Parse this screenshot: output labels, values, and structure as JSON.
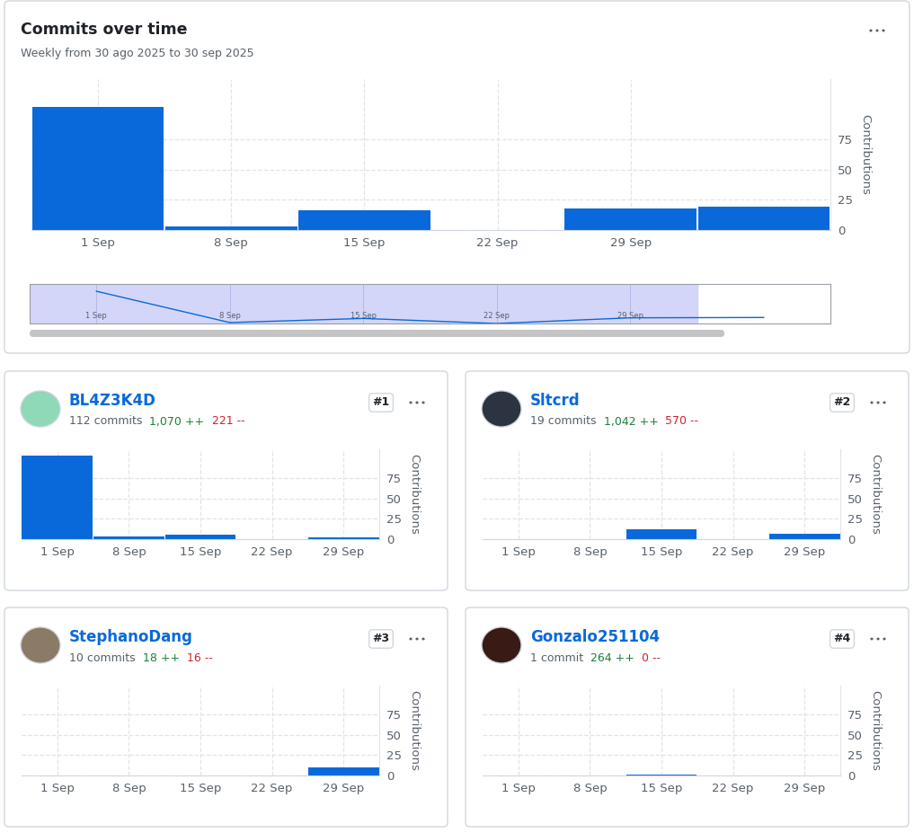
{
  "chart_data": [
    {
      "type": "bar",
      "title": "Commits over time",
      "subtitle": "Weekly from 30 ago 2025 to 30 sep 2025",
      "ylabel": "Contributions",
      "categories": [
        "1 Sep",
        "8 Sep",
        "15 Sep",
        "22 Sep",
        "29 Sep",
        null
      ],
      "values": [
        102,
        3,
        16,
        0,
        18,
        19
      ],
      "color": "#0969da",
      "ylim": [
        0,
        125
      ],
      "yticks": [
        0,
        25,
        50,
        75
      ],
      "grid": true
    },
    {
      "type": "bar",
      "title": "BL4Z3K4D",
      "subtitle": "112 commits",
      "annotations": [
        "1,070 ++",
        "221 --",
        "#1"
      ],
      "ylabel": "Contributions",
      "categories": [
        "1 Sep",
        "8 Sep",
        "15 Sep",
        "22 Sep",
        "29 Sep"
      ],
      "values": [
        102,
        3,
        5,
        0,
        2
      ],
      "color": "#0969da",
      "ylim": [
        0,
        110
      ],
      "yticks": [
        0,
        25,
        50,
        75
      ],
      "grid": true
    },
    {
      "type": "bar",
      "title": "Sltcrd",
      "subtitle": "19 commits",
      "annotations": [
        "1,042 ++",
        "570 --",
        "#2"
      ],
      "ylabel": "Contributions",
      "categories": [
        "1 Sep",
        "8 Sep",
        "15 Sep",
        "22 Sep",
        "29 Sep"
      ],
      "values": [
        0,
        0,
        12,
        0,
        7
      ],
      "color": "#0969da",
      "ylim": [
        0,
        110
      ],
      "yticks": [
        0,
        25,
        50,
        75
      ],
      "grid": true
    },
    {
      "type": "bar",
      "title": "StephanoDang",
      "subtitle": "10 commits",
      "annotations": [
        "18 ++",
        "16 --",
        "#3"
      ],
      "ylabel": "Contributions",
      "categories": [
        "1 Sep",
        "8 Sep",
        "15 Sep",
        "22 Sep",
        "29 Sep"
      ],
      "values": [
        0,
        0,
        0,
        0,
        10
      ],
      "color": "#0969da",
      "ylim": [
        0,
        110
      ],
      "yticks": [
        0,
        25,
        50,
        75
      ],
      "grid": true
    },
    {
      "type": "bar",
      "title": "Gonzalo251104",
      "subtitle": "1 commit",
      "annotations": [
        "264 ++",
        "0 --",
        "#4"
      ],
      "ylabel": "Contributions",
      "categories": [
        "1 Sep",
        "8 Sep",
        "15 Sep",
        "22 Sep",
        "29 Sep"
      ],
      "values": [
        0,
        0,
        1,
        0,
        0
      ],
      "color": "#0969da",
      "ylim": [
        0,
        110
      ],
      "yticks": [
        0,
        25,
        50,
        75
      ],
      "grid": true
    }
  ]
}
